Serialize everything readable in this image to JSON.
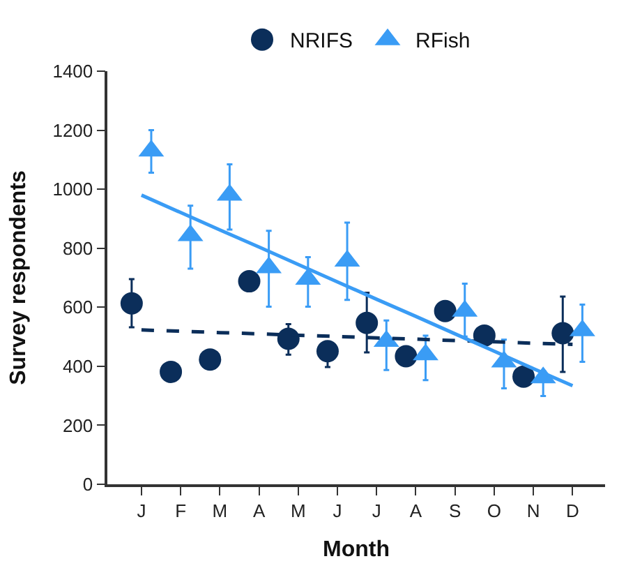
{
  "chart_data": {
    "type": "scatter",
    "xlabel": "Month",
    "ylabel": "Survey respondents",
    "categories": [
      "J",
      "F",
      "M",
      "A",
      "M",
      "J",
      "J",
      "A",
      "S",
      "O",
      "N",
      "D"
    ],
    "ylim": [
      0,
      1400
    ],
    "yticks": [
      0,
      200,
      400,
      600,
      800,
      1000,
      1200,
      1400
    ],
    "legend": "top",
    "series": [
      {
        "name": "NRIFS",
        "color": "#0b2e5a",
        "marker": "circle",
        "values": [
          613,
          381,
          423,
          688,
          493,
          451,
          547,
          434,
          587,
          504,
          365,
          512
        ],
        "errors": [
          [
            532,
            695
          ],
          null,
          null,
          null,
          [
            439,
            543
          ],
          [
            397,
            477
          ],
          [
            447,
            649
          ],
          null,
          null,
          null,
          null,
          [
            381,
            636
          ]
        ]
      },
      {
        "name": "RFish",
        "color": "#3a9cf5",
        "marker": "triangle",
        "values": [
          1130,
          843,
          980,
          734,
          695,
          757,
          485,
          439,
          587,
          415,
          361,
          521
        ],
        "errors": [
          [
            1056,
            1200
          ],
          [
            731,
            944
          ],
          [
            863,
            1084
          ],
          [
            602,
            859
          ],
          [
            602,
            770
          ],
          [
            625,
            887
          ],
          [
            387,
            555
          ],
          [
            353,
            504
          ],
          [
            501,
            680
          ],
          [
            325,
            490
          ],
          [
            299,
            384
          ],
          [
            415,
            609
          ]
        ]
      },
      {
        "type": "line",
        "color": "#0b2e5a",
        "line_style": "dashed",
        "marker": "none",
        "values": [
          523,
          519,
          514,
          510,
          505,
          501,
          496,
          492,
          487,
          483,
          478,
          474
        ]
      },
      {
        "type": "line",
        "color": "#3a9cf5",
        "line_style": "solid",
        "marker": "none",
        "values": [
          980,
          921,
          862,
          804,
          745,
          686,
          627,
          569,
          510,
          451,
          392,
          334
        ]
      }
    ]
  }
}
